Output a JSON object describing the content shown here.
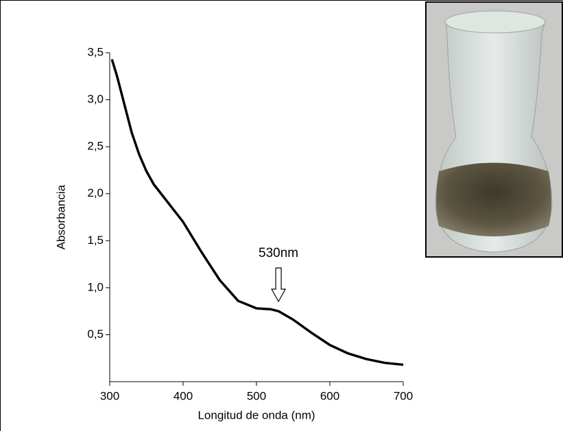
{
  "chart_data": {
    "type": "line",
    "x": [
      303,
      310,
      320,
      330,
      340,
      350,
      360,
      375,
      400,
      425,
      450,
      475,
      500,
      520,
      530,
      550,
      575,
      600,
      625,
      650,
      675,
      700
    ],
    "values": [
      3.43,
      3.25,
      2.95,
      2.65,
      2.42,
      2.24,
      2.1,
      1.95,
      1.7,
      1.38,
      1.08,
      0.86,
      0.78,
      0.77,
      0.75,
      0.66,
      0.52,
      0.39,
      0.3,
      0.24,
      0.2,
      0.18
    ],
    "color": "#000000",
    "xlabel": "Longitud de onda (nm)",
    "ylabel": "Absorbancia",
    "xlim": [
      300,
      700
    ],
    "ylim": [
      0,
      3.5
    ],
    "xticks": [
      300,
      400,
      500,
      600,
      700
    ],
    "yticks": [
      {
        "value": 0.5,
        "label": "0,5"
      },
      {
        "value": 1.0,
        "label": "1,0"
      },
      {
        "value": 1.5,
        "label": "1,5"
      },
      {
        "value": 2.0,
        "label": "2,0"
      },
      {
        "value": 2.5,
        "label": "2,5"
      },
      {
        "value": 3.0,
        "label": "3,0"
      },
      {
        "value": 3.5,
        "label": "3,5"
      }
    ],
    "annotation": {
      "text": "530nm",
      "x": 530
    }
  }
}
